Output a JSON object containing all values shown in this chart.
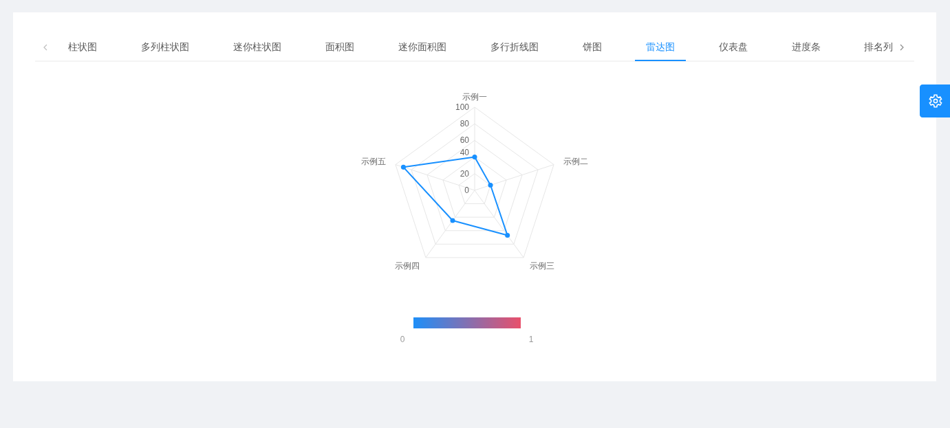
{
  "chart_data": {
    "type": "radar",
    "title": "雷达图",
    "annotations": [
      "柱状图",
      "多列柱状图",
      "迷你柱状图",
      "面积图",
      "迷你面积图",
      "多行折线图",
      "饼图",
      "仪表盘",
      "进度条",
      "排名列",
      {
        "text": "0"
      },
      {
        "text": "1"
      }
    ],
    "categories": [
      "示例一",
      "示例二",
      "示例三",
      "示例四",
      "示例五"
    ],
    "series": [
      {
        "color": "#1890ff",
        "values": [
          40,
          20,
          67,
          45,
          90
        ]
      }
    ],
    "ylim": [
      0,
      100
    ],
    "yticks": [
      0,
      20,
      40,
      60,
      80,
      100
    ],
    "grid": true,
    "marker": "circle",
    "line_style": "solid"
  }
}
